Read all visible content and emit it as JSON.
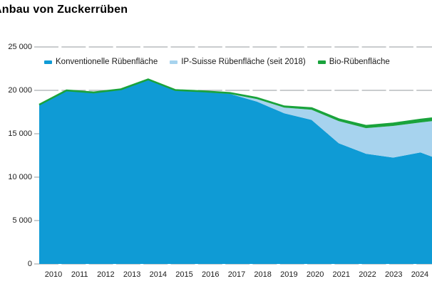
{
  "title": "Anbau von Zuckerrüben",
  "colors": {
    "conventional": "#0f9bd5",
    "ip_suisse": "#a7d3ee",
    "bio": "#1aa33c",
    "gridline": "#a9adb0",
    "text": "#1a1a1a",
    "background": "#ffffff"
  },
  "legend": {
    "items": [
      {
        "label": "Konventionelle Rübenfläche",
        "color_key": "conventional"
      },
      {
        "label": "IP-Suisse Rübenfläche (seit 2018)",
        "color_key": "ip_suisse"
      },
      {
        "label": "Bio-Rübenfläche",
        "color_key": "bio"
      }
    ]
  },
  "chart_data": {
    "type": "area",
    "stacked": true,
    "title": "Anbau von Zuckerrüben",
    "x_labels": [
      "2010",
      "2011",
      "2012",
      "2013",
      "2014",
      "2015",
      "2016",
      "2017",
      "2018",
      "2019",
      "2020",
      "2021",
      "2022",
      "2023",
      "2024"
    ],
    "series": [
      {
        "name": "Konventionelle Rübenfläche",
        "color_key": "conventional",
        "values": [
          18300,
          19930,
          19700,
          20050,
          21190,
          19950,
          19800,
          19600,
          18700,
          17350,
          16600,
          13900,
          12700,
          12250,
          12850
        ]
      },
      {
        "name": "IP-Suisse Rübenfläche (seit 2018)",
        "color_key": "ip_suisse",
        "values": [
          0,
          0,
          0,
          0,
          0,
          0,
          0,
          0,
          300,
          660,
          1170,
          2550,
          2950,
          3650,
          3450
        ]
      },
      {
        "name": "Bio-Rübenfläche",
        "color_key": "bio",
        "values": [
          50,
          60,
          60,
          70,
          70,
          80,
          90,
          100,
          120,
          140,
          180,
          220,
          260,
          290,
          320
        ]
      }
    ],
    "clip_edge_values": [
      12350,
      4100,
      330
    ],
    "ylim": [
      0,
      25000
    ],
    "ytick_values": [
      0,
      5000,
      10000,
      15000,
      20000,
      25000
    ],
    "ytick_labels": [
      "0",
      "5 000",
      "10 000",
      "15 000",
      "20 000",
      "25 000"
    ],
    "grid": "horizontal-dashed",
    "legend_position": "top-inside",
    "total_line": {
      "color_key": "bio",
      "width": 2.6
    }
  }
}
